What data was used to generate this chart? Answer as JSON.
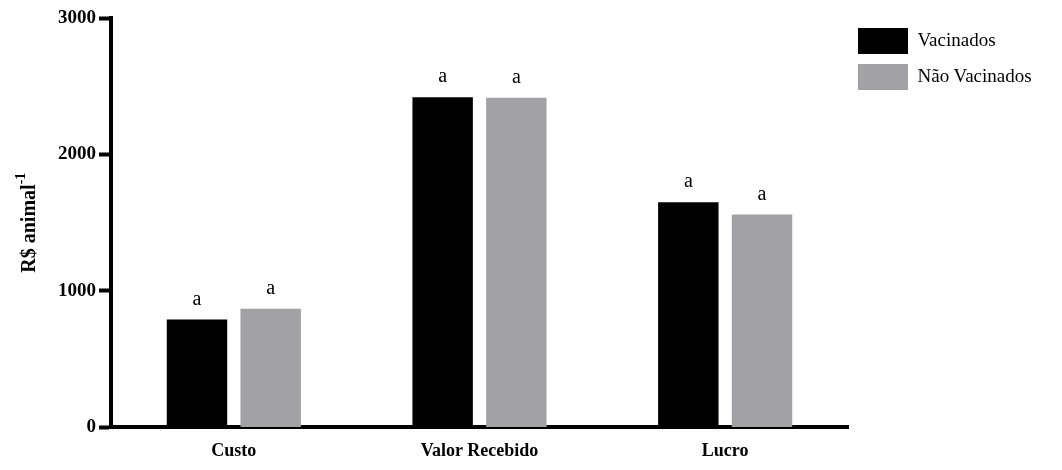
{
  "chart_data": {
    "type": "bar",
    "ylabel": "R$ animal$^{-1}$",
    "categories": [
      "Custo",
      "Valor Recebido",
      "Lucro"
    ],
    "series": [
      {
        "name": "Vacinados",
        "color": "#000000",
        "values": [
          790,
          2420,
          1650
        ],
        "value_labels": [
          "a",
          "a",
          "a"
        ]
      },
      {
        "name": "Não Vacinados",
        "color": "#a2a1a6",
        "values": [
          870,
          2415,
          1560
        ],
        "value_labels": [
          "a",
          "a",
          "a"
        ]
      }
    ],
    "ylim": [
      0,
      3000
    ],
    "yticks": [
      0,
      1000,
      2000,
      3000
    ],
    "grid": false,
    "legend": "top right"
  }
}
